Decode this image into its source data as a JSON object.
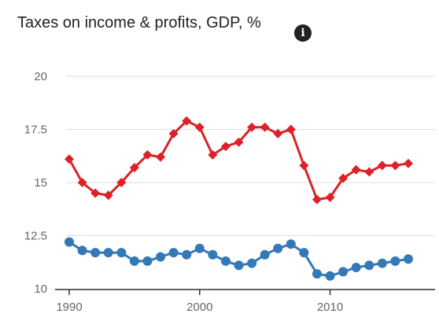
{
  "header": {
    "title": "Taxes on income & profits, GDP, %",
    "info_icon": "info-icon",
    "info_glyph": "i"
  },
  "chart_data": {
    "type": "line",
    "title": "Taxes on income & profits, GDP, %",
    "x": [
      1990,
      1991,
      1992,
      1993,
      1994,
      1995,
      1996,
      1997,
      1998,
      1999,
      2000,
      2001,
      2002,
      2003,
      2004,
      2005,
      2006,
      2007,
      2008,
      2009,
      2010,
      2011,
      2012,
      2013,
      2014,
      2015,
      2016
    ],
    "series": [
      {
        "color": "#dc2127",
        "marker": "diamond",
        "values": [
          16.1,
          15.0,
          14.5,
          14.4,
          15.0,
          15.7,
          16.3,
          16.2,
          17.3,
          17.9,
          17.6,
          16.3,
          16.7,
          16.9,
          17.6,
          17.6,
          17.3,
          17.5,
          15.8,
          14.2,
          14.3,
          15.2,
          15.6,
          15.5,
          15.8,
          15.8,
          15.9
        ]
      },
      {
        "color": "#3478b8",
        "marker": "circle",
        "values": [
          12.2,
          11.8,
          11.7,
          11.7,
          11.7,
          11.3,
          11.3,
          11.5,
          11.7,
          11.6,
          11.9,
          11.6,
          11.3,
          11.1,
          11.2,
          11.6,
          11.9,
          12.1,
          11.7,
          10.7,
          10.6,
          10.8,
          11.0,
          11.1,
          11.2,
          11.3,
          11.4
        ]
      }
    ],
    "y_ticks": [
      "20",
      "17.5",
      "15",
      "12.5",
      "10"
    ],
    "y_tick_values": [
      20,
      17.5,
      15,
      12.5,
      10
    ],
    "x_ticks": [
      "1990",
      "2000",
      "2010"
    ],
    "x_tick_values": [
      1990,
      2000,
      2010
    ],
    "ylim": [
      10,
      20
    ],
    "xlim": [
      1990,
      2016
    ],
    "grid": true
  }
}
